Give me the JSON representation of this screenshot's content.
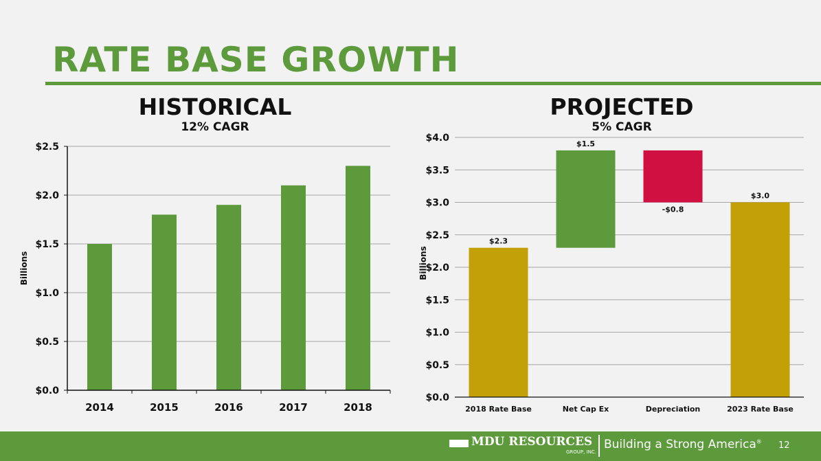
{
  "slide": {
    "title": "RATE BASE GROWTH",
    "page_number": "12"
  },
  "brand": {
    "name": "MDU RESOURCES",
    "group": "GROUP, INC.",
    "tagline": "Building a Strong America",
    "trademark": "®",
    "green": "#5c9a3c",
    "gold": "#c4a008",
    "red": "#d01040"
  },
  "chart_data": [
    {
      "type": "bar",
      "title": "HISTORICAL",
      "subtitle": "12% CAGR",
      "xlabel": "",
      "ylabel": "Billions",
      "categories": [
        "2014",
        "2015",
        "2016",
        "2017",
        "2018"
      ],
      "values": [
        1.5,
        1.8,
        1.9,
        2.1,
        2.3
      ],
      "ylim": [
        0,
        2.5
      ],
      "yticks": [
        0,
        0.5,
        1.0,
        1.5,
        2.0,
        2.5
      ],
      "ytick_labels": [
        "$0.0",
        "$0.5",
        "$1.0",
        "$1.5",
        "$2.0",
        "$2.5"
      ],
      "grid": true,
      "color": "#5c9a3c"
    },
    {
      "type": "bar",
      "subtype": "waterfall",
      "title": "PROJECTED",
      "subtitle": "5% CAGR",
      "xlabel": "",
      "ylabel": "Billions",
      "categories": [
        "2018 Rate Base",
        "Net Cap Ex",
        "Depreciation",
        "2023 Rate Base"
      ],
      "bars": [
        {
          "start": 0,
          "end": 2.3,
          "label": "$2.3",
          "color": "#c4a008",
          "label_pos": "above"
        },
        {
          "start": 2.3,
          "end": 3.8,
          "label": "$1.5",
          "color": "#5c9a3c",
          "label_pos": "above"
        },
        {
          "start": 3.0,
          "end": 3.8,
          "label": "-$0.8",
          "color": "#d01040",
          "label_pos": "below"
        },
        {
          "start": 0,
          "end": 3.0,
          "label": "$3.0",
          "color": "#c4a008",
          "label_pos": "above"
        }
      ],
      "ylim": [
        0,
        4.0
      ],
      "yticks": [
        0,
        0.5,
        1.0,
        1.5,
        2.0,
        2.5,
        3.0,
        3.5,
        4.0
      ],
      "ytick_labels": [
        "$0.0",
        "$0.5",
        "$1.0",
        "$1.5",
        "$2.0",
        "$2.5",
        "$3.0",
        "$3.5",
        "$4.0"
      ],
      "grid": true
    }
  ]
}
